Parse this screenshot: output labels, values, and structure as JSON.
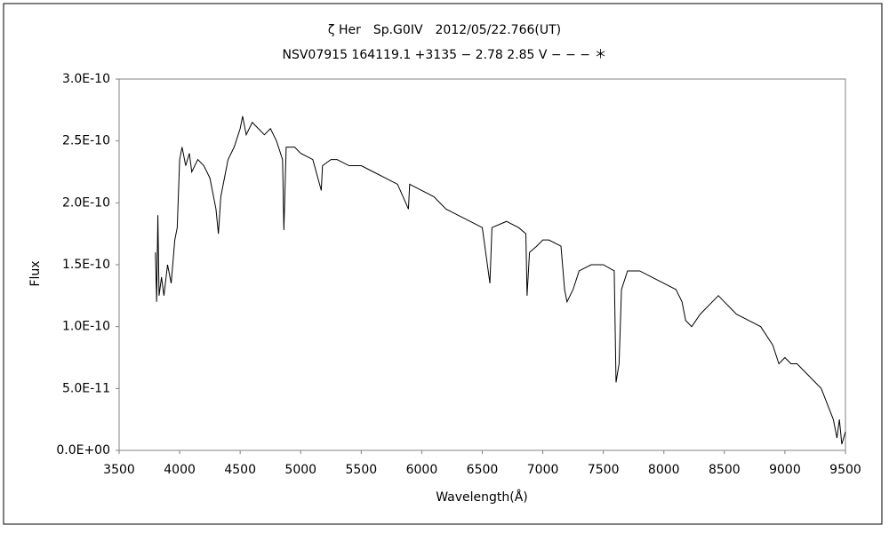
{
  "chart_data": {
    "type": "line",
    "title": "ζ Her　Sp.G0IV　2012/05/22.766(UT)",
    "subtitle": "NSV07915 164119.1 +3135 − 2.78 2.85 V − − − ＊",
    "x_label": "Wavelength(Å)",
    "y_label": "Flux",
    "x": [
      3800,
      3810,
      3820,
      3830,
      3850,
      3870,
      3900,
      3930,
      3960,
      3980,
      4000,
      4020,
      4050,
      4080,
      4100,
      4150,
      4200,
      4250,
      4300,
      4320,
      4340,
      4400,
      4450,
      4500,
      4520,
      4550,
      4600,
      4650,
      4700,
      4750,
      4800,
      4850,
      4861,
      4880,
      4950,
      5000,
      5100,
      5170,
      5180,
      5250,
      5300,
      5400,
      5500,
      5600,
      5700,
      5800,
      5890,
      5900,
      6000,
      6100,
      6200,
      6300,
      6400,
      6500,
      6563,
      6580,
      6700,
      6800,
      6860,
      6870,
      6890,
      6950,
      7000,
      7050,
      7150,
      7180,
      7200,
      7250,
      7300,
      7400,
      7500,
      7590,
      7605,
      7630,
      7650,
      7700,
      7800,
      7900,
      8000,
      8100,
      8150,
      8180,
      8230,
      8300,
      8400,
      8450,
      8500,
      8550,
      8600,
      8700,
      8800,
      8900,
      8950,
      9000,
      9050,
      9100,
      9200,
      9300,
      9400,
      9430,
      9450,
      9470,
      9500
    ],
    "series": [
      {
        "name": "Flux",
        "color": "#000000",
        "values": [
          1.6e-10,
          1.2e-10,
          1.9e-10,
          1.25e-10,
          1.4e-10,
          1.25e-10,
          1.5e-10,
          1.35e-10,
          1.7e-10,
          1.8e-10,
          2.35e-10,
          2.45e-10,
          2.3e-10,
          2.4e-10,
          2.25e-10,
          2.35e-10,
          2.3e-10,
          2.2e-10,
          1.95e-10,
          1.75e-10,
          2.05e-10,
          2.35e-10,
          2.45e-10,
          2.6e-10,
          2.7e-10,
          2.55e-10,
          2.65e-10,
          2.6e-10,
          2.55e-10,
          2.6e-10,
          2.5e-10,
          2.35e-10,
          1.78e-10,
          2.45e-10,
          2.45e-10,
          2.4e-10,
          2.35e-10,
          2.1e-10,
          2.3e-10,
          2.35e-10,
          2.35e-10,
          2.3e-10,
          2.3e-10,
          2.25e-10,
          2.2e-10,
          2.15e-10,
          1.95e-10,
          2.15e-10,
          2.1e-10,
          2.05e-10,
          1.95e-10,
          1.9e-10,
          1.85e-10,
          1.8e-10,
          1.35e-10,
          1.8e-10,
          1.85e-10,
          1.8e-10,
          1.75e-10,
          1.25e-10,
          1.6e-10,
          1.65e-10,
          1.7e-10,
          1.7e-10,
          1.65e-10,
          1.3e-10,
          1.2e-10,
          1.3e-10,
          1.45e-10,
          1.5e-10,
          1.5e-10,
          1.45e-10,
          5.5e-11,
          7e-11,
          1.3e-10,
          1.45e-10,
          1.45e-10,
          1.4e-10,
          1.35e-10,
          1.3e-10,
          1.2e-10,
          1.05e-10,
          1e-10,
          1.1e-10,
          1.2e-10,
          1.25e-10,
          1.2e-10,
          1.15e-10,
          1.1e-10,
          1.05e-10,
          1e-10,
          8.5e-11,
          7e-11,
          7.5e-11,
          7e-11,
          7e-11,
          6e-11,
          5e-11,
          2.5e-11,
          1e-11,
          2.5e-11,
          5e-12,
          1.5e-11
        ]
      }
    ],
    "xlim": [
      3500,
      9500
    ],
    "xticks": [
      3500,
      4000,
      4500,
      5000,
      5500,
      6000,
      6500,
      7000,
      7500,
      8000,
      8500,
      9000,
      9500
    ],
    "ylim": [
      0,
      3e-10
    ],
    "yticks": [
      {
        "value": 0,
        "label": "0.0E+00"
      },
      {
        "value": 5e-11,
        "label": "5.0E-11"
      },
      {
        "value": 1e-10,
        "label": "1.0E-10"
      },
      {
        "value": 1.5e-10,
        "label": "1.5E-10"
      },
      {
        "value": 2e-10,
        "label": "2.0E-10"
      },
      {
        "value": 2.5e-10,
        "label": "2.5E-10"
      },
      {
        "value": 3e-10,
        "label": "3.0E-10"
      }
    ],
    "grid": false
  }
}
